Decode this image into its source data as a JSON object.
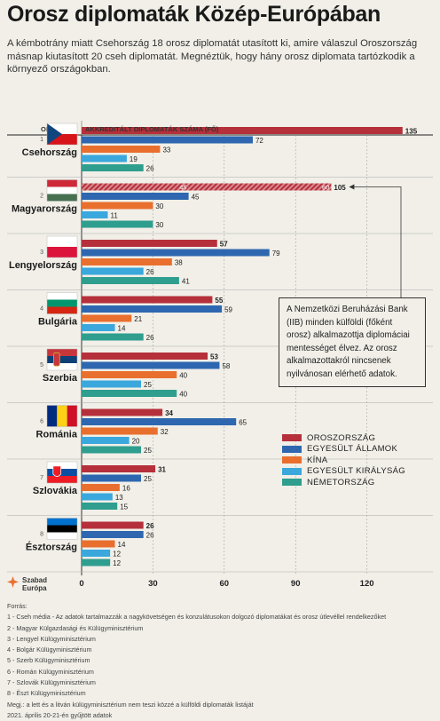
{
  "title": "Orosz diplomaták Közép-Európában",
  "intro": "A kémbotrány miatt Csehország 18 orosz diplomatát utasított ki, amire válaszul Oroszország másnap kiutasított 20 cseh diplomatát. Megnéztük, hogy hány orosz diplomata tartózkodik a környező országokban.",
  "colors": {
    "russia": "#b5303a",
    "usa": "#2e67b0",
    "china": "#e96f2e",
    "uk": "#3aa8dc",
    "germany": "#2f9e8e",
    "hatch": "#e0a3a8",
    "text": "#1a1a1a",
    "logo": "#e96f2e"
  },
  "chart_data": {
    "type": "bar",
    "orientation": "horizontal",
    "header_country": "ORSZÁG",
    "header_value": "AKKREDITÁLT DIPLOMATÁK SZÁMA (FŐ)",
    "x_ticks": [
      0,
      30,
      60,
      90,
      120
    ],
    "xlim": [
      0,
      140
    ],
    "grid": true,
    "legend_position": "right",
    "series_keys": [
      "russia",
      "usa",
      "china",
      "uk",
      "germany"
    ],
    "series_names": [
      "OROSZORSZÁG",
      "EGYESÜLT ÁLLAMOK",
      "KÍNA",
      "EGYESÜLT KIRÁLYSÁG",
      "NÉMETORSZÁG"
    ],
    "categories": [
      {
        "num": "1",
        "name": "Csehország",
        "flag": "cz",
        "values": [
          135,
          72,
          33,
          19,
          26
        ]
      },
      {
        "num": "2",
        "name": "Magyarország",
        "flag": "hu",
        "values": [
          105,
          45,
          30,
          11,
          30
        ],
        "russia_split": [
          45,
          60
        ]
      },
      {
        "num": "3",
        "name": "Lengyelország",
        "flag": "pl",
        "values": [
          57,
          79,
          38,
          26,
          41
        ]
      },
      {
        "num": "4",
        "name": "Bulgária",
        "flag": "bg",
        "values": [
          55,
          59,
          21,
          14,
          26
        ]
      },
      {
        "num": "5",
        "name": "Szerbia",
        "flag": "rs",
        "values": [
          53,
          58,
          40,
          25,
          40
        ]
      },
      {
        "num": "6",
        "name": "Románia",
        "flag": "ro",
        "values": [
          34,
          65,
          32,
          20,
          25
        ]
      },
      {
        "num": "7",
        "name": "Szlovákia",
        "flag": "sk",
        "values": [
          31,
          25,
          16,
          13,
          15
        ]
      },
      {
        "num": "8",
        "name": "Észtország",
        "flag": "ee",
        "values": [
          26,
          26,
          14,
          12,
          12
        ]
      }
    ]
  },
  "annotation": "A Nemzetközi Beruházási Bank (IIB) minden külföldi (főként orosz) alkalmazottja diplomáciai mentességet élvez. Az orosz alkalmazottakról nincsenek nyilvánosan elérhető adatok.",
  "logo": {
    "line1": "Szabad",
    "line2": "Európa"
  },
  "sources": {
    "label": "Forrás:",
    "items": [
      "1 - Cseh média - Az adatok tartalmazzák a nagykövetségen és konzulátusokon dolgozó diplomatákat és orosz útlevéllel rendelkezőket",
      "2 - Magyar Külgazdasági és Külügyminisztérium",
      "3 - Lengyel Külügyminisztérium",
      "4 - Bolgár Külügyminisztérium",
      "5 - Szerb Külügyminisztérium",
      "6 - Román Külügyminisztérium",
      "7 - Szlovák Külügyminisztérium",
      "8 - Észt Külügyminisztérium"
    ],
    "note": "Megj.: a lett és a litván külügyminisztérium nem teszi közzé a külföldi diplomaták listáját",
    "date": "2021. április 20-21-én gyűjtött adatok"
  }
}
